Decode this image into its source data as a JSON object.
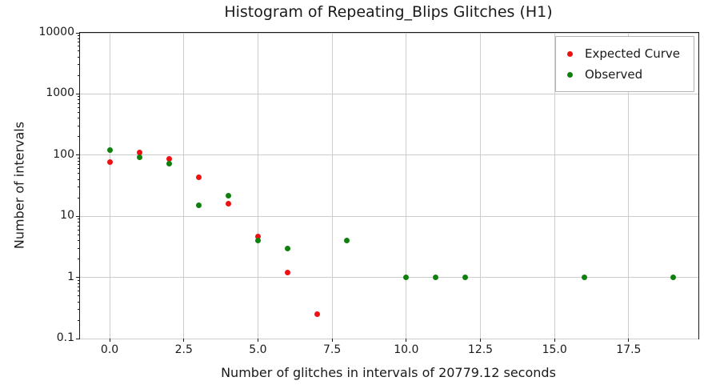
{
  "title": "Histogram of Repeating_Blips Glitches (H1)",
  "xlabel": "Number of glitches in intervals of 20779.12 seconds",
  "ylabel": "Number of intervals",
  "legend": {
    "items": [
      {
        "label": "Expected Curve",
        "series": "Expected Curve"
      },
      {
        "label": "Observed",
        "series": "Observed"
      }
    ]
  },
  "colors": {
    "expected": "#ee1111",
    "observed": "#0e800e",
    "grid": "#cdcdcd",
    "spine": "#1a1a1a"
  },
  "axes": {
    "x_tick_labels": [
      "0.0",
      "2.5",
      "5.0",
      "7.5",
      "10.0",
      "12.5",
      "15.0",
      "17.5"
    ],
    "x_tick_values": [
      0,
      2.5,
      5,
      7.5,
      10,
      12.5,
      15,
      17.5
    ],
    "y_tick_labels": [
      "10000",
      "1000",
      "100",
      "10",
      "1",
      "0.1"
    ],
    "y_tick_values": [
      10000,
      1000,
      100,
      10,
      1,
      0.1
    ]
  },
  "chart_data": {
    "type": "scatter",
    "title": "Histogram of Repeating_Blips Glitches (H1)",
    "xlabel": "Number of glitches in intervals of 20779.12 seconds",
    "ylabel": "Number of intervals",
    "y_scale": "log",
    "xlim": [
      -1.0,
      19.85
    ],
    "ylim": [
      0.1,
      10000
    ],
    "grid": true,
    "legend_position": "upper right",
    "series": [
      {
        "name": "Expected Curve",
        "color_key": "expected",
        "points": [
          [
            0,
            78
          ],
          [
            1,
            112
          ],
          [
            2,
            86
          ],
          [
            3,
            43
          ],
          [
            4,
            16
          ],
          [
            5,
            4.7
          ],
          [
            6,
            1.2
          ],
          [
            7,
            0.25
          ]
        ]
      },
      {
        "name": "Observed",
        "color_key": "observed",
        "points": [
          [
            0,
            122
          ],
          [
            1,
            92
          ],
          [
            2,
            72
          ],
          [
            3,
            15
          ],
          [
            4,
            22
          ],
          [
            5,
            4
          ],
          [
            6,
            3
          ],
          [
            8,
            4
          ],
          [
            10,
            1
          ],
          [
            11,
            1
          ],
          [
            12,
            1
          ],
          [
            16,
            1
          ],
          [
            19,
            1
          ]
        ]
      }
    ]
  }
}
